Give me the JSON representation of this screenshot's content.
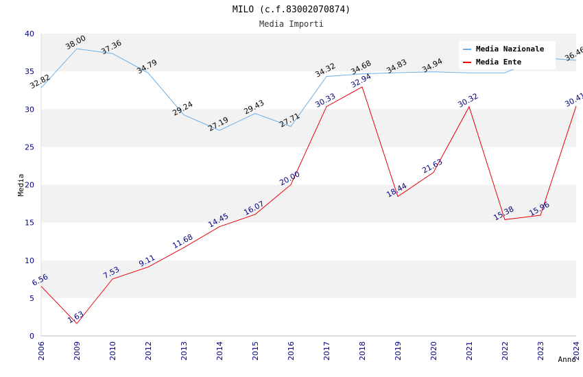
{
  "chart_data": {
    "type": "line",
    "title": "MILO (c.f.83002070874)",
    "subtitle": "Media Importi",
    "xlabel": "Anno",
    "ylabel": "Media",
    "ylim": [
      0,
      40
    ],
    "yticks": [
      0,
      5,
      10,
      15,
      20,
      25,
      30,
      35,
      40
    ],
    "grid": "horizontal alternating bands",
    "legend_position": "top-right",
    "categories": [
      "2006",
      "2009",
      "2010",
      "2012",
      "2013",
      "2014",
      "2015",
      "2016",
      "2017",
      "2018",
      "2019",
      "2020",
      "2021",
      "2022",
      "2023",
      "2024"
    ],
    "series": [
      {
        "name": "Media Nazionale",
        "color": "#6aaee8",
        "values": [
          32.82,
          38.0,
          37.36,
          34.79,
          29.24,
          27.19,
          29.43,
          27.71,
          34.32,
          34.68,
          34.83,
          34.94,
          34.8,
          34.8,
          36.8,
          36.46
        ],
        "labels": [
          "32.82",
          "38.00",
          "37.36",
          "34.79",
          "29.24",
          "27.19",
          "29.43",
          "27.71",
          "34.32",
          "34.68",
          "34.83",
          "34.94",
          "",
          "",
          "",
          "36.46"
        ]
      },
      {
        "name": "Media Ente",
        "color": "#e8000a",
        "values": [
          6.56,
          1.63,
          7.53,
          9.11,
          11.68,
          14.45,
          16.07,
          20.0,
          30.33,
          32.94,
          18.44,
          21.63,
          30.32,
          15.38,
          15.96,
          30.41
        ],
        "labels": [
          "6.56",
          "1.63",
          "7.53",
          "9.11",
          "11.68",
          "14.45",
          "16.07",
          "20.00",
          "30.33",
          "32.94",
          "18.44",
          "21.63",
          "30.32",
          "15.38",
          "15.96",
          "30.41"
        ]
      }
    ]
  }
}
